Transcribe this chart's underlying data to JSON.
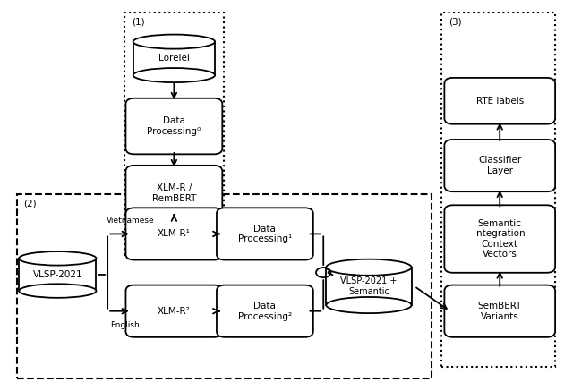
{
  "fig_width": 6.4,
  "fig_height": 4.37,
  "bg_color": "#ffffff",
  "box_facecolor": "#ffffff",
  "box_edgecolor": "#000000",
  "lw": 1.3,
  "font_size": 7.5,
  "lorelei_label": "Lorelei",
  "dp0_label": "Data\nProcessing⁰",
  "xlmr0_label": "XLM-R /\nRemBERT",
  "vlsp_label": "VLSP-2021",
  "xlmr1_label": "XLM-R¹",
  "dp1_label": "Data\nProcessing¹",
  "xlmr2_label": "XLM-R²",
  "dp2_label": "Data\nProcessing²",
  "vlsp_sem_label": "VLSP-2021 +\nSemantic",
  "sembert_label": "SemBERT\nVariants",
  "semvec_label": "Semantic\nIntegration\nContext\nVectors",
  "classifier_label": "Classifier\nLayer",
  "rte_label": "RTE labels",
  "label1": "(1)",
  "label2": "(2)",
  "label3": "(3)",
  "vietnamese_label": "Vietnamese",
  "english_label": "English"
}
